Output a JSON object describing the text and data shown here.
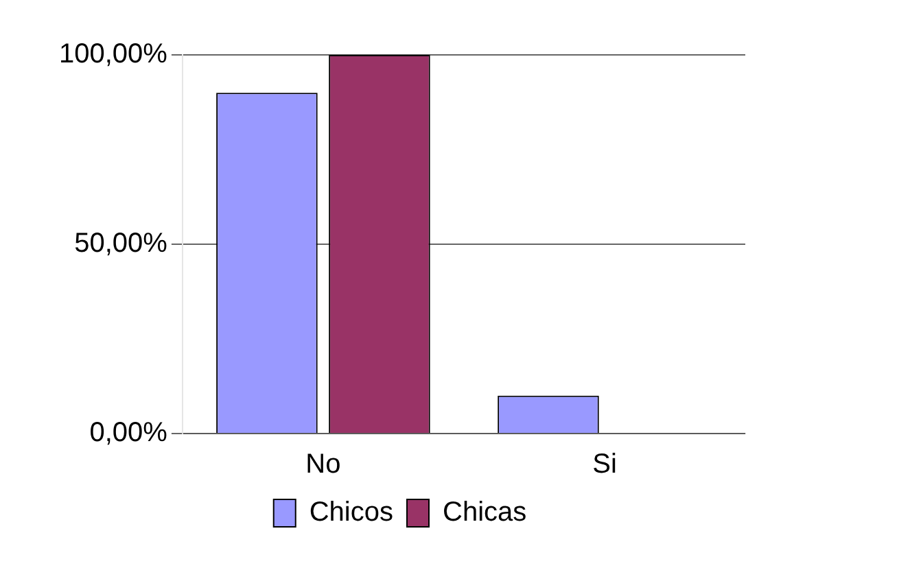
{
  "chart_data": {
    "type": "bar",
    "categories": [
      "No",
      "Si"
    ],
    "series": [
      {
        "name": "Chicos",
        "color": "#9999ff",
        "values": [
          90,
          10
        ]
      },
      {
        "name": "Chicas",
        "color": "#993366",
        "values": [
          100,
          0
        ]
      }
    ],
    "ylim": [
      0,
      100
    ],
    "yticks": [
      {
        "value": 0,
        "label": "0,00%"
      },
      {
        "value": 50,
        "label": "50,00%"
      },
      {
        "value": 100,
        "label": "100,00%"
      }
    ],
    "grid": "y",
    "legend": "bottom"
  }
}
